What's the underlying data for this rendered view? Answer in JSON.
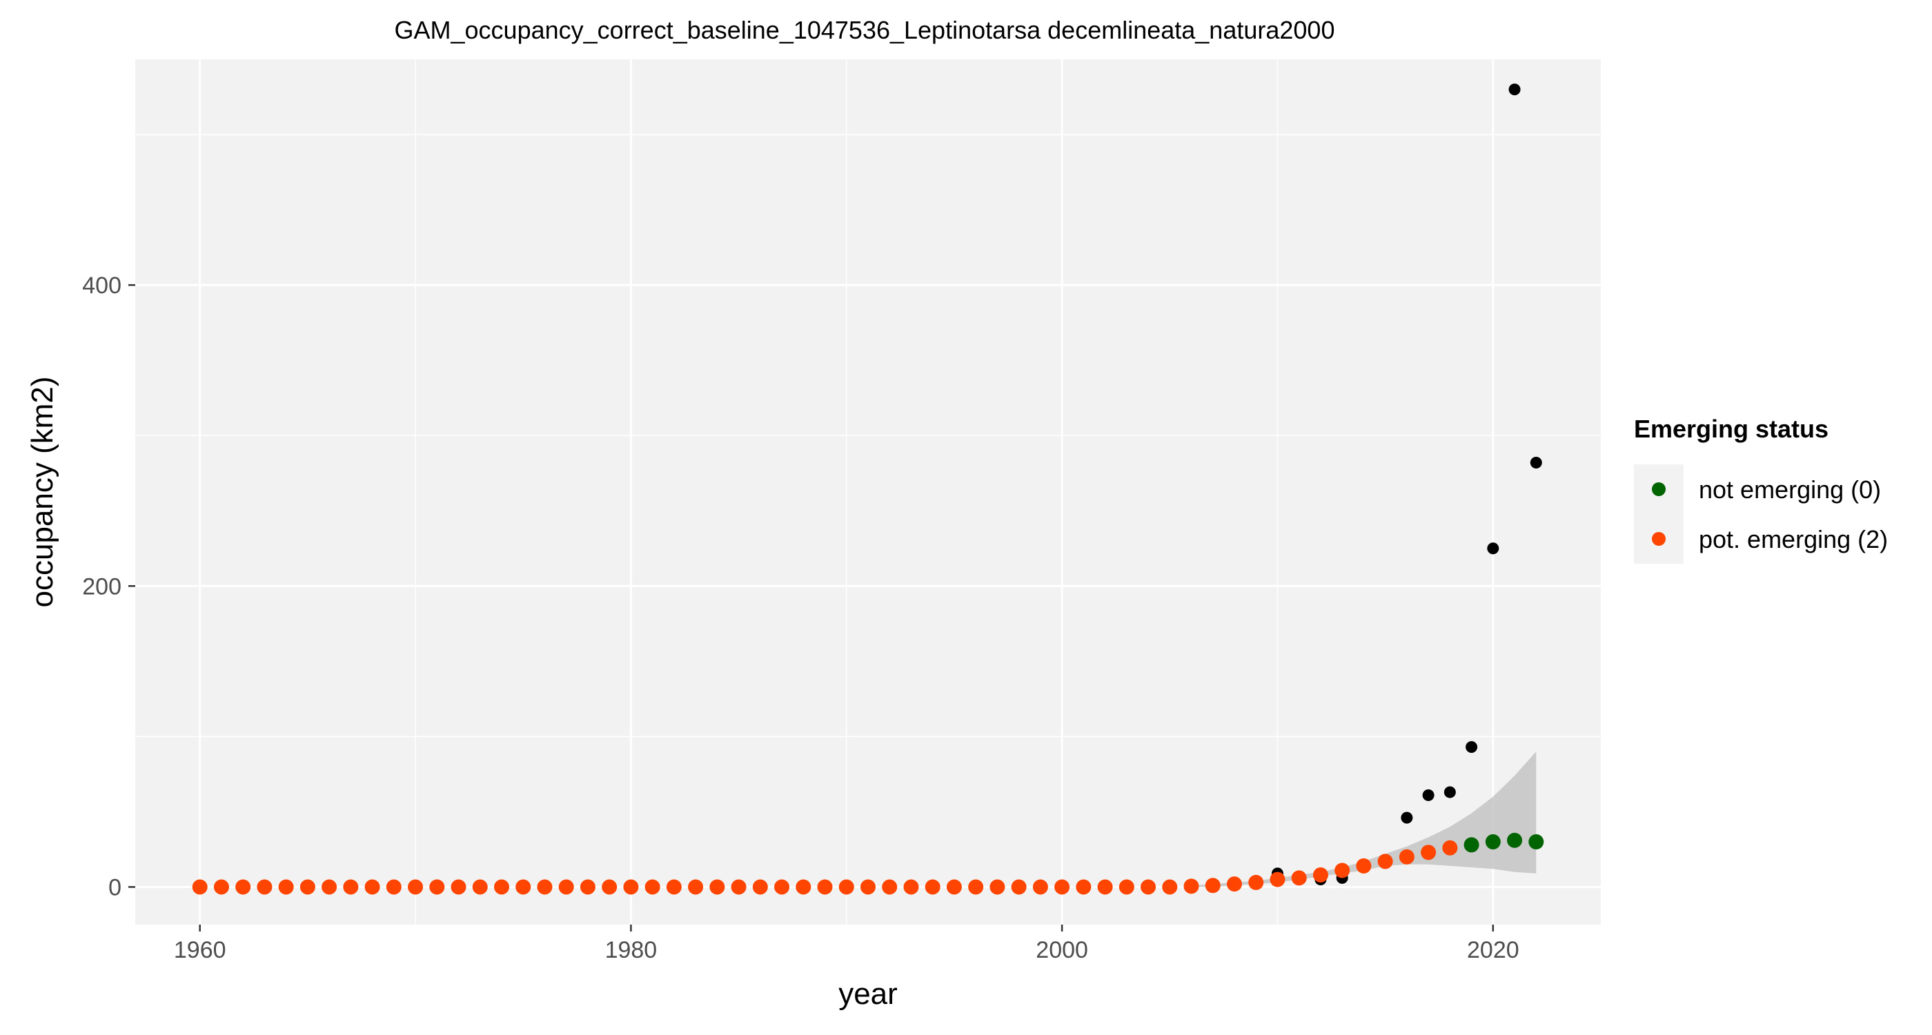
{
  "chart_data": {
    "type": "scatter",
    "title": "GAM_occupancy_correct_baseline_1047536_Leptinotarsa decemlineata_natura2000",
    "xlabel": "year",
    "ylabel": "occupancy (km2)",
    "xlim": [
      1957,
      2025
    ],
    "ylim": [
      -25,
      550
    ],
    "x_ticks": [
      1960,
      1980,
      2000,
      2020
    ],
    "y_ticks": [
      0,
      200,
      400
    ],
    "x_minor": [
      1970,
      1990,
      2010
    ],
    "y_minor": [
      100,
      300,
      500
    ],
    "grid": true,
    "legend": {
      "title": "Emerging status",
      "placement": "right",
      "entries": [
        {
          "label": "not emerging (0)",
          "color": "#006400"
        },
        {
          "label": "pot. emerging (2)",
          "color": "#FF4500"
        }
      ]
    },
    "observed": {
      "color": "#000000",
      "points": [
        [
          2007,
          1
        ],
        [
          2010,
          9
        ],
        [
          2011,
          6
        ],
        [
          2012,
          5
        ],
        [
          2013,
          6
        ],
        [
          2014,
          15
        ],
        [
          2015,
          18
        ],
        [
          2016,
          46
        ],
        [
          2017,
          61
        ],
        [
          2018,
          63
        ],
        [
          2019,
          93
        ],
        [
          2020,
          225
        ],
        [
          2021,
          530
        ],
        [
          2022,
          282
        ]
      ]
    },
    "confidence_band": {
      "color": "#bebebe",
      "x": [
        2006,
        2007,
        2008,
        2009,
        2010,
        2011,
        2012,
        2013,
        2014,
        2015,
        2016,
        2017,
        2018,
        2019,
        2020,
        2021,
        2022
      ],
      "lower": [
        0,
        0,
        1,
        2,
        3,
        5,
        7,
        9,
        11,
        14,
        15,
        15,
        14,
        13,
        12,
        10,
        9
      ],
      "upper": [
        1,
        2,
        3,
        4,
        6,
        8,
        10,
        13,
        17,
        22,
        27,
        33,
        40,
        49,
        60,
        74,
        90
      ]
    },
    "series": [
      {
        "name": "pot. emerging (2)",
        "color": "#FF4500",
        "points": [
          [
            1960,
            0
          ],
          [
            1961,
            0
          ],
          [
            1962,
            0
          ],
          [
            1963,
            0
          ],
          [
            1964,
            0
          ],
          [
            1965,
            0
          ],
          [
            1966,
            0
          ],
          [
            1967,
            0
          ],
          [
            1968,
            0
          ],
          [
            1969,
            0
          ],
          [
            1970,
            0
          ],
          [
            1971,
            0
          ],
          [
            1972,
            0
          ],
          [
            1973,
            0
          ],
          [
            1974,
            0
          ],
          [
            1975,
            0
          ],
          [
            1976,
            0
          ],
          [
            1977,
            0
          ],
          [
            1978,
            0
          ],
          [
            1979,
            0
          ],
          [
            1980,
            0
          ],
          [
            1981,
            0
          ],
          [
            1982,
            0
          ],
          [
            1983,
            0
          ],
          [
            1984,
            0
          ],
          [
            1985,
            0
          ],
          [
            1986,
            0
          ],
          [
            1987,
            0
          ],
          [
            1988,
            0
          ],
          [
            1989,
            0
          ],
          [
            1990,
            0
          ],
          [
            1991,
            0
          ],
          [
            1992,
            0
          ],
          [
            1993,
            0
          ],
          [
            1994,
            0
          ],
          [
            1995,
            0
          ],
          [
            1996,
            0
          ],
          [
            1997,
            0
          ],
          [
            1998,
            0
          ],
          [
            1999,
            0
          ],
          [
            2000,
            0
          ],
          [
            2001,
            0
          ],
          [
            2002,
            0
          ],
          [
            2003,
            0
          ],
          [
            2004,
            0
          ],
          [
            2005,
            0
          ],
          [
            2006,
            0.5
          ],
          [
            2007,
            1
          ],
          [
            2008,
            2
          ],
          [
            2009,
            3
          ],
          [
            2010,
            5
          ],
          [
            2011,
            6
          ],
          [
            2012,
            8
          ],
          [
            2013,
            11
          ],
          [
            2014,
            14
          ],
          [
            2015,
            17
          ],
          [
            2016,
            20
          ],
          [
            2017,
            23
          ],
          [
            2018,
            26
          ]
        ]
      },
      {
        "name": "not emerging (0)",
        "color": "#006400",
        "points": [
          [
            2019,
            28
          ],
          [
            2020,
            30
          ],
          [
            2021,
            31
          ],
          [
            2022,
            30
          ]
        ]
      }
    ]
  }
}
